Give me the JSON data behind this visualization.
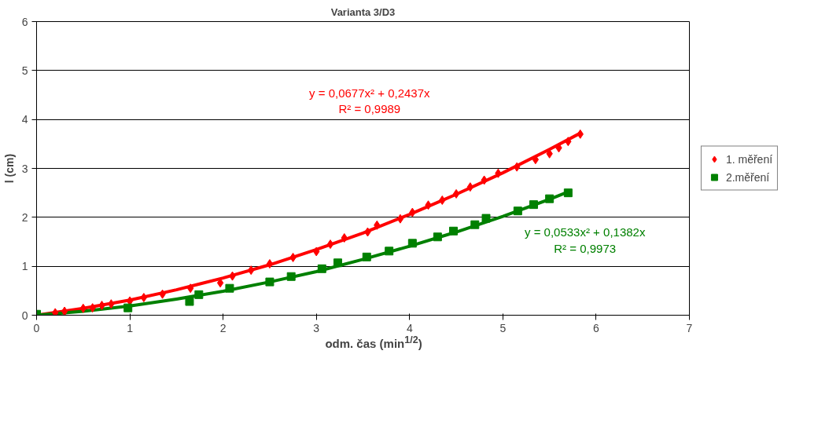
{
  "chart_data": {
    "type": "scatter",
    "title": "Varianta 3/D3",
    "xlabel": "odm. čas (min$^{1/2}$)",
    "ylabel": "l (cm)",
    "xlim": [
      0,
      7
    ],
    "xticks": [
      0,
      1,
      2,
      3,
      4,
      5,
      6,
      7
    ],
    "ylim": [
      0,
      6
    ],
    "yticks": [
      0,
      1,
      2,
      3,
      4,
      5,
      6
    ],
    "grid": "y",
    "legend": "right",
    "series": [
      {
        "name": "1. měření",
        "color": "#ff0000",
        "marker": "diamond",
        "x": [
          0.2,
          0.3,
          0.5,
          0.6,
          0.7,
          0.8,
          1.0,
          1.15,
          1.35,
          1.65,
          1.97,
          2.1,
          2.3,
          2.5,
          2.75,
          3.0,
          3.15,
          3.3,
          3.55,
          3.65,
          3.9,
          4.03,
          4.2,
          4.35,
          4.5,
          4.65,
          4.8,
          4.95,
          5.15,
          5.35,
          5.5,
          5.6,
          5.7,
          5.83
        ],
        "values": [
          0.05,
          0.08,
          0.14,
          0.15,
          0.2,
          0.23,
          0.29,
          0.36,
          0.43,
          0.55,
          0.66,
          0.8,
          0.92,
          1.05,
          1.18,
          1.3,
          1.45,
          1.58,
          1.7,
          1.84,
          1.97,
          2.1,
          2.25,
          2.35,
          2.48,
          2.62,
          2.76,
          2.9,
          3.03,
          3.18,
          3.3,
          3.42,
          3.55,
          3.7
        ]
      },
      {
        "name": "2.měření",
        "color": "#008000",
        "marker": "square",
        "x": [
          0,
          0.98,
          1.64,
          1.74,
          2.07,
          2.5,
          2.73,
          3.06,
          3.23,
          3.54,
          3.78,
          4.03,
          4.3,
          4.47,
          4.7,
          4.82,
          5.16,
          5.33,
          5.5,
          5.7
        ],
        "values": [
          0.02,
          0.15,
          0.28,
          0.42,
          0.55,
          0.68,
          0.79,
          0.95,
          1.07,
          1.19,
          1.31,
          1.47,
          1.6,
          1.72,
          1.85,
          1.98,
          2.13,
          2.26,
          2.38,
          2.5
        ]
      },
      {
        "type": "line",
        "color": "#ff0000",
        "x": [
          0,
          0.5,
          1,
          1.5,
          2,
          2.5,
          3,
          3.5,
          4,
          4.5,
          5,
          5.5,
          5.83
        ],
        "values": [
          0,
          0.14,
          0.31,
          0.52,
          0.76,
          1.03,
          1.34,
          1.68,
          2.06,
          2.47,
          2.91,
          3.39,
          3.72
        ]
      },
      {
        "type": "line",
        "color": "#008000",
        "x": [
          0,
          0.5,
          1,
          1.5,
          2,
          2.5,
          3,
          3.5,
          4,
          4.5,
          5,
          5.5,
          5.7
        ],
        "values": [
          0,
          0.08,
          0.19,
          0.33,
          0.49,
          0.68,
          0.89,
          1.14,
          1.41,
          1.7,
          2.02,
          2.37,
          2.52
        ]
      }
    ],
    "annotations": [
      "y = 0,0677x² + 0,2437x\nR² = 0,9989",
      "y = 0,0533x² + 0,1382x\nR² = 0,9973"
    ]
  }
}
